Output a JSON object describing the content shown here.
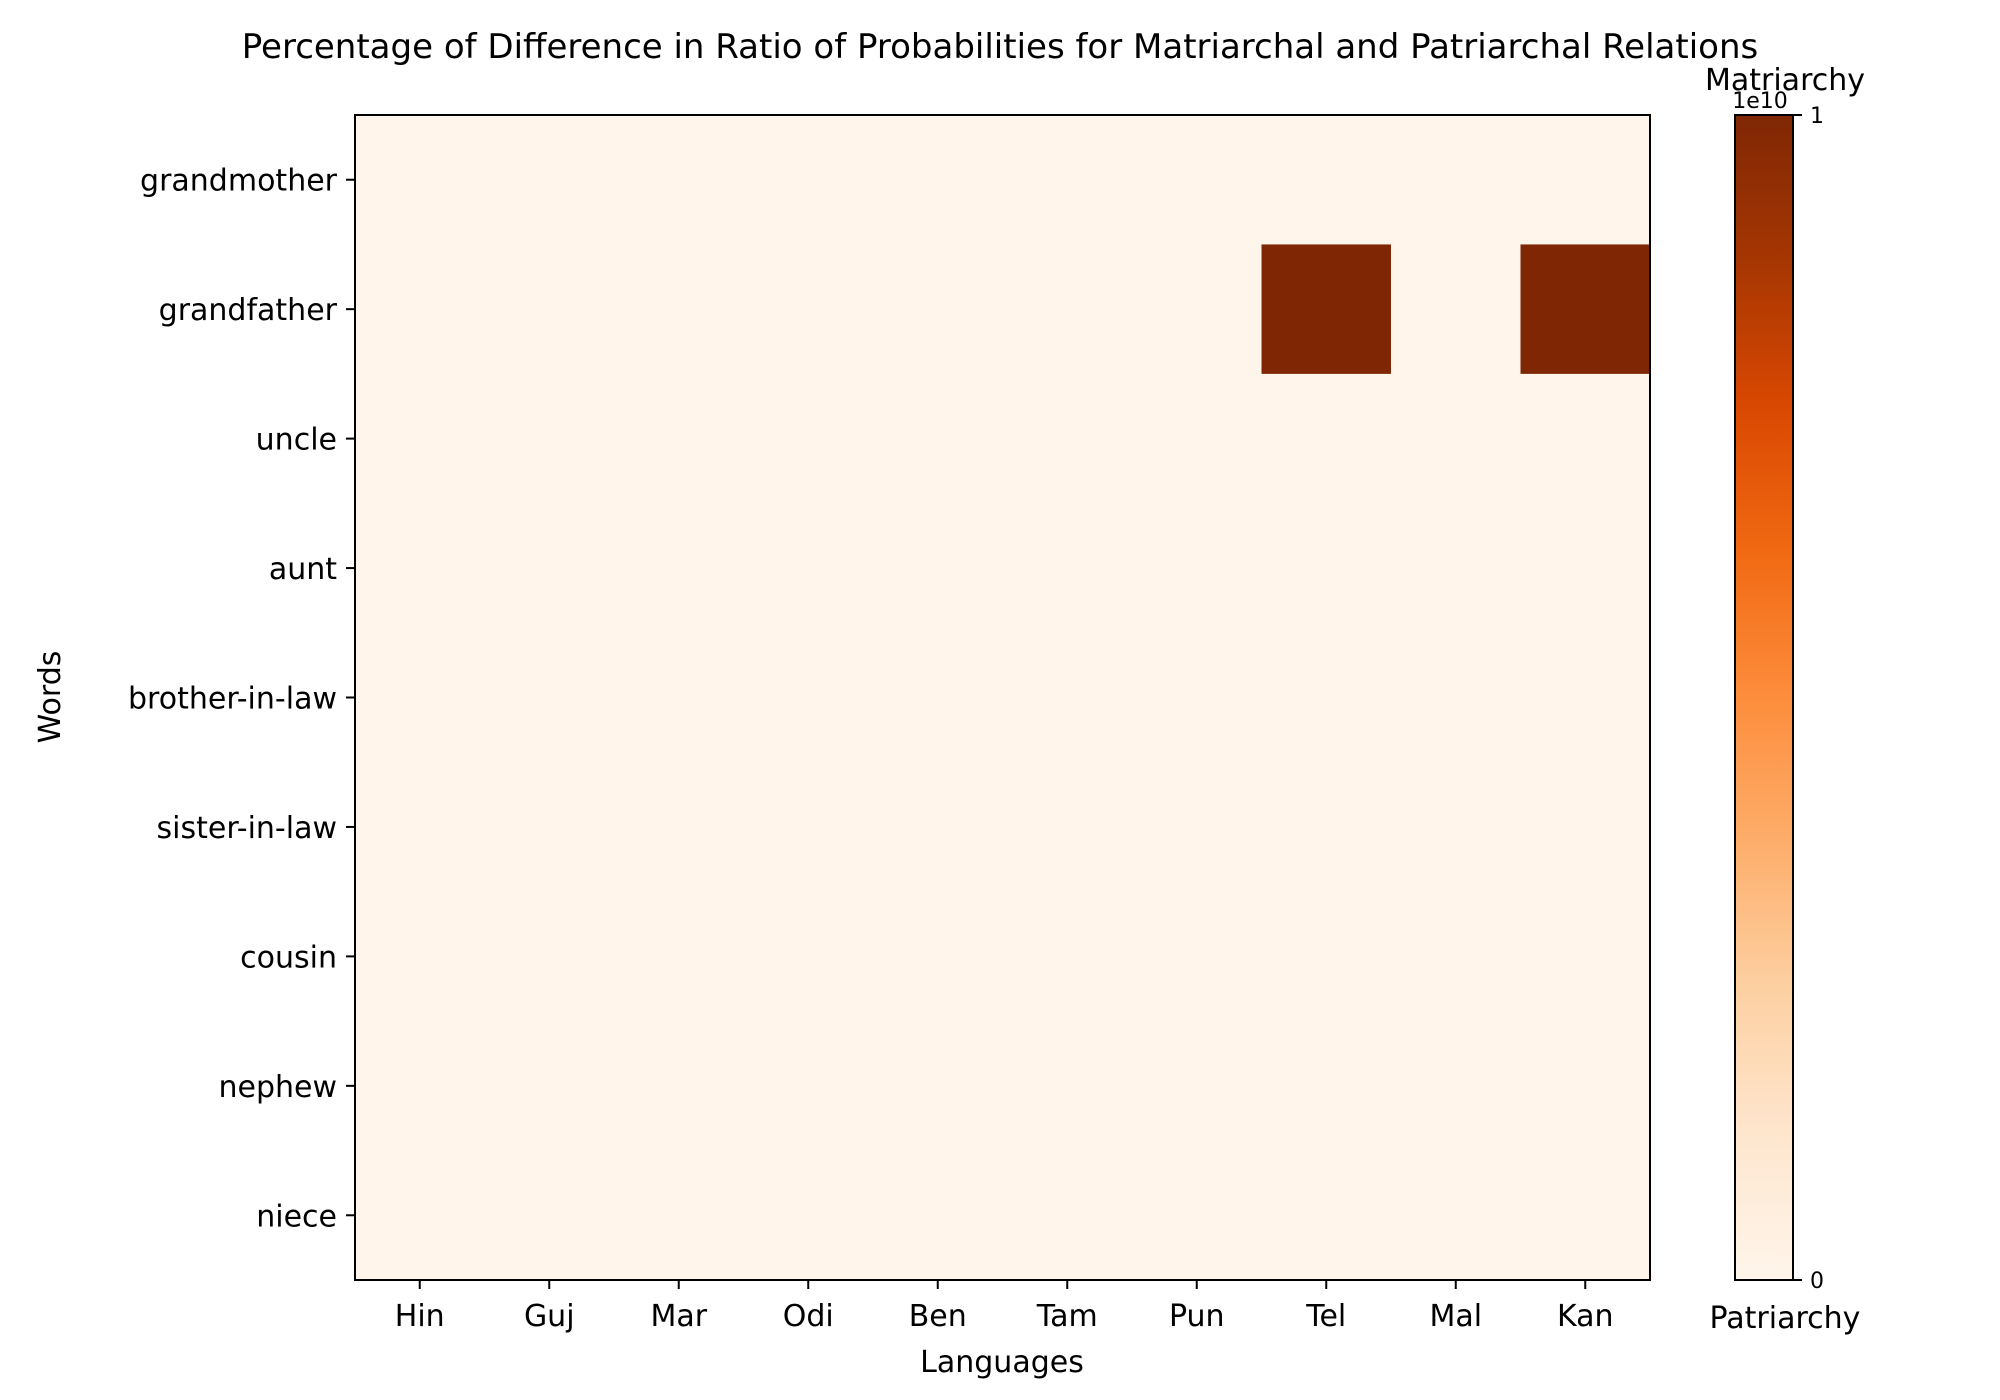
{
  "chart_data": {
    "type": "heatmap",
    "title": "Percentage of Difference in Ratio of Probabilities for Matriarchal and Patriarchal Relations",
    "xlabel": "Languages",
    "ylabel": "Words",
    "x_categories": [
      "Hin",
      "Guj",
      "Mar",
      "Odi",
      "Ben",
      "Tam",
      "Pun",
      "Tel",
      "Mal",
      "Kan"
    ],
    "y_categories": [
      "grandmother",
      "grandfather",
      "uncle",
      "aunt",
      "brother-in-law",
      "sister-in-law",
      "cousin",
      "nephew",
      "niece"
    ],
    "values": [
      [
        0,
        0,
        0,
        0,
        0,
        0,
        0,
        0,
        0,
        0
      ],
      [
        0,
        0,
        0,
        0,
        0,
        0,
        0,
        1,
        0,
        1
      ],
      [
        0,
        0,
        0,
        0,
        0,
        0,
        0,
        0,
        0,
        0
      ],
      [
        0,
        0,
        0,
        0,
        0,
        0,
        0,
        0,
        0,
        0
      ],
      [
        0,
        0,
        0,
        0,
        0,
        0,
        0,
        0,
        0,
        0
      ],
      [
        0,
        0,
        0,
        0,
        0,
        0,
        0,
        0,
        0,
        0
      ],
      [
        0,
        0,
        0,
        0,
        0,
        0,
        0,
        0,
        0,
        0
      ],
      [
        0,
        0,
        0,
        0,
        0,
        0,
        0,
        0,
        0,
        0
      ],
      [
        0,
        0,
        0,
        0,
        0,
        0,
        0,
        0,
        0,
        0
      ]
    ],
    "value_scale_label": "1e10",
    "colorbar": {
      "top_label": "Matriarchy",
      "bottom_label": "Patriarchy",
      "ticks": [
        "0",
        "1"
      ],
      "range": [
        0,
        1
      ],
      "colormap": "Oranges",
      "low_color": "#fff5eb",
      "high_color": "#7f2704"
    }
  }
}
